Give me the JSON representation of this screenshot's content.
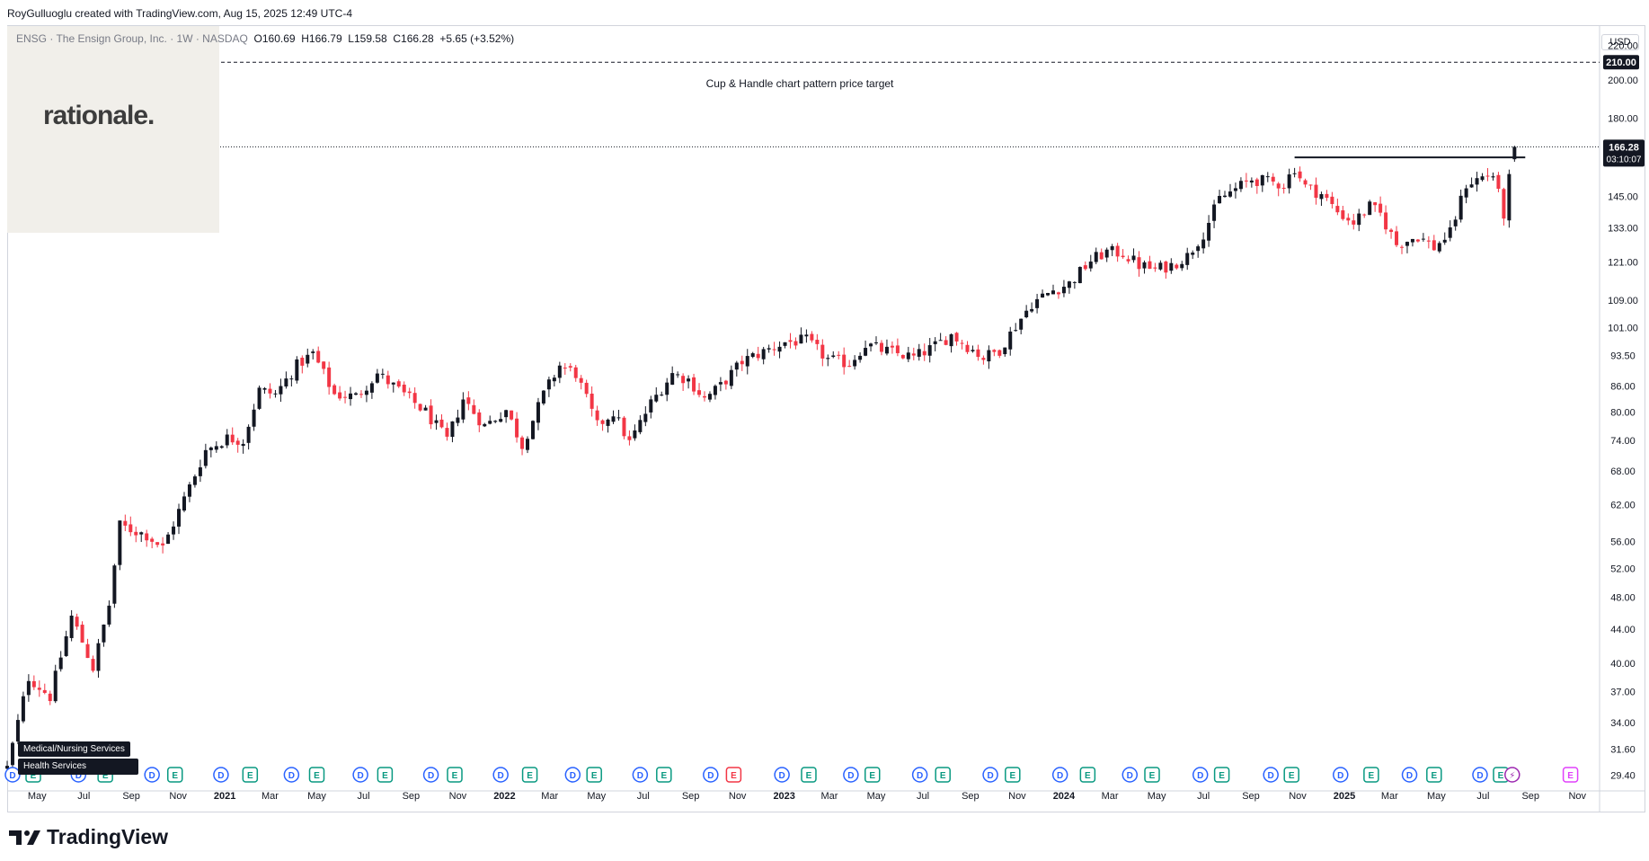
{
  "header": {
    "credit": "RoyGulluoglu created with TradingView.com, Aug 15, 2025 12:49 UTC-4",
    "symbol_desc": "ENSG · The Ensign Group, Inc. · 1W · NASDAQ",
    "open": "O160.69",
    "high": "H166.79",
    "low": "L159.58",
    "close": "C166.28",
    "change": "+5.65 (+3.52%)"
  },
  "branding": {
    "overlay_logo": "rationale.",
    "footer_logo": "TradingView"
  },
  "chart_data": {
    "type": "candlestick",
    "title": "ENSG · The Ensign Group, Inc. · 1W · NASDAQ",
    "currency": "USD",
    "y_scale": "log",
    "ylim": [
      28.5,
      232
    ],
    "y_ticks": [
      29.4,
      31.6,
      34.0,
      37.0,
      40.0,
      44.0,
      48.0,
      52.0,
      56.0,
      62.0,
      68.0,
      74.0,
      80.0,
      86.0,
      93.5,
      101.0,
      109.0,
      121.0,
      133.0,
      145.0,
      166.28,
      180.0,
      200.0,
      210.0,
      220.0
    ],
    "y_tick_labels": [
      "29.40",
      "31.60",
      "34.00",
      "37.00",
      "40.00",
      "44.00",
      "48.00",
      "52.00",
      "56.00",
      "62.00",
      "68.00",
      "74.00",
      "80.00",
      "86.00",
      "93.50",
      "101.00",
      "109.00",
      "121.00",
      "133.00",
      "145.00",
      "166.28",
      "180.00",
      "200.00",
      "210.00",
      "220.00"
    ],
    "x_tick_labels": [
      "May",
      "Jul",
      "Sep",
      "Nov",
      "2021",
      "Mar",
      "May",
      "Jul",
      "Sep",
      "Nov",
      "2022",
      "Mar",
      "May",
      "Jul",
      "Sep",
      "Nov",
      "2023",
      "Mar",
      "May",
      "Jul",
      "Sep",
      "Nov",
      "2024",
      "Mar",
      "May",
      "Jul",
      "Sep",
      "Nov",
      "2025",
      "Mar",
      "May",
      "Jul",
      "Sep",
      "Nov"
    ],
    "x_tick_dates": [
      "2020-05-01",
      "2020-07-01",
      "2020-09-01",
      "2020-11-01",
      "2021-01-01",
      "2021-03-01",
      "2021-05-01",
      "2021-07-01",
      "2021-09-01",
      "2021-11-01",
      "2022-01-01",
      "2022-03-01",
      "2022-05-01",
      "2022-07-01",
      "2022-09-01",
      "2022-11-01",
      "2023-01-01",
      "2023-03-01",
      "2023-05-01",
      "2023-07-01",
      "2023-09-01",
      "2023-11-01",
      "2024-01-01",
      "2024-03-01",
      "2024-05-01",
      "2024-07-01",
      "2024-09-01",
      "2024-11-01",
      "2025-01-01",
      "2025-03-01",
      "2025-05-01",
      "2025-07-01",
      "2025-09-01",
      "2025-11-01"
    ],
    "xlim": [
      "2020-03-23",
      "2025-11-30"
    ],
    "last_price": 166.28,
    "last_price_label": "166.28",
    "countdown": "03:10:07",
    "target_price": 210.0,
    "target_label": "210.00",
    "target_annotation": "Cup & Handle chart pattern price target",
    "neckline": {
      "start": "2024-10-28",
      "end": "2025-08-25",
      "price": 161.5
    },
    "colors": {
      "up": "#131722",
      "down": "#f23645",
      "line": "#131722",
      "label_bg": "#131722",
      "grid_text": "#131722"
    },
    "anchors": [
      [
        "2020-03-23",
        30.0
      ],
      [
        "2020-04-20",
        38.5
      ],
      [
        "2020-05-18",
        36.5
      ],
      [
        "2020-06-15",
        45.5
      ],
      [
        "2020-06-29",
        42.5
      ],
      [
        "2020-07-13",
        39.5
      ],
      [
        "2020-08-03",
        47.0
      ],
      [
        "2020-08-17",
        58.5
      ],
      [
        "2020-09-21",
        57.0
      ],
      [
        "2020-10-12",
        55.0
      ],
      [
        "2020-11-09",
        63.0
      ],
      [
        "2020-12-07",
        72.0
      ],
      [
        "2021-01-04",
        74.5
      ],
      [
        "2021-01-25",
        74.0
      ],
      [
        "2021-02-15",
        85.0
      ],
      [
        "2021-03-08",
        84.0
      ],
      [
        "2021-04-05",
        91.0
      ],
      [
        "2021-04-26",
        94.0
      ],
      [
        "2021-05-24",
        84.0
      ],
      [
        "2021-06-21",
        83.5
      ],
      [
        "2021-07-19",
        89.0
      ],
      [
        "2021-08-23",
        84.0
      ],
      [
        "2021-09-20",
        80.0
      ],
      [
        "2021-10-18",
        74.0
      ],
      [
        "2021-11-08",
        83.0
      ],
      [
        "2021-12-06",
        77.0
      ],
      [
        "2022-01-03",
        80.5
      ],
      [
        "2022-01-24",
        73.0
      ],
      [
        "2022-02-21",
        84.0
      ],
      [
        "2022-03-14",
        91.0
      ],
      [
        "2022-04-04",
        89.0
      ],
      [
        "2022-05-02",
        77.0
      ],
      [
        "2022-05-23",
        80.0
      ],
      [
        "2022-06-13",
        73.5
      ],
      [
        "2022-07-11",
        82.0
      ],
      [
        "2022-08-08",
        89.0
      ],
      [
        "2022-08-29",
        87.5
      ],
      [
        "2022-09-19",
        83.0
      ],
      [
        "2022-10-10",
        86.0
      ],
      [
        "2022-11-07",
        92.0
      ],
      [
        "2022-12-05",
        94.5
      ],
      [
        "2023-01-02",
        97.0
      ],
      [
        "2023-01-30",
        97.5
      ],
      [
        "2023-02-27",
        92.5
      ],
      [
        "2023-03-27",
        91.5
      ],
      [
        "2023-04-17",
        96.5
      ],
      [
        "2023-05-08",
        95.0
      ],
      [
        "2023-05-29",
        94.0
      ],
      [
        "2023-06-19",
        93.0
      ],
      [
        "2023-07-17",
        96.0
      ],
      [
        "2023-08-07",
        99.0
      ],
      [
        "2023-08-28",
        96.0
      ],
      [
        "2023-09-18",
        93.0
      ],
      [
        "2023-10-09",
        95.0
      ],
      [
        "2023-10-30",
        101.5
      ],
      [
        "2023-11-20",
        108.0
      ],
      [
        "2023-12-18",
        112.0
      ],
      [
        "2024-01-08",
        114.0
      ],
      [
        "2024-02-05",
        121.5
      ],
      [
        "2024-02-26",
        124.5
      ],
      [
        "2024-03-18",
        124.0
      ],
      [
        "2024-04-08",
        120.0
      ],
      [
        "2024-04-29",
        118.5
      ],
      [
        "2024-05-20",
        120.0
      ],
      [
        "2024-06-10",
        123.0
      ],
      [
        "2024-07-01",
        131.0
      ],
      [
        "2024-07-22",
        144.0
      ],
      [
        "2024-08-12",
        148.0
      ],
      [
        "2024-09-02",
        152.0
      ],
      [
        "2024-09-23",
        151.0
      ],
      [
        "2024-10-14",
        150.0
      ],
      [
        "2024-10-28",
        157.0
      ],
      [
        "2024-11-11",
        149.0
      ],
      [
        "2024-12-02",
        146.0
      ],
      [
        "2024-12-23",
        139.0
      ],
      [
        "2025-01-13",
        135.0
      ],
      [
        "2025-02-03",
        141.0
      ],
      [
        "2025-02-17",
        138.0
      ],
      [
        "2025-03-10",
        127.0
      ],
      [
        "2025-04-07",
        130.0
      ],
      [
        "2025-04-28",
        126.0
      ],
      [
        "2025-05-19",
        131.0
      ],
      [
        "2025-06-09",
        150.0
      ],
      [
        "2025-06-30",
        153.0
      ],
      [
        "2025-07-14",
        154.0
      ],
      [
        "2025-07-28",
        138.0
      ],
      [
        "2025-08-04",
        152.0
      ],
      [
        "2025-08-11",
        166.28
      ]
    ]
  },
  "events": {
    "dividend_label": "D",
    "earnings_label": "E",
    "split_label": "⚡",
    "dividends": [
      "2020-03-30",
      "2020-06-24",
      "2020-09-28",
      "2020-12-27",
      "2021-03-29",
      "2021-06-27",
      "2021-09-27",
      "2021-12-27",
      "2022-03-31",
      "2022-06-27",
      "2022-09-27",
      "2022-12-29",
      "2023-03-29",
      "2023-06-27",
      "2023-09-27",
      "2023-12-27",
      "2024-03-27",
      "2024-06-27",
      "2024-09-27",
      "2024-12-27",
      "2025-03-27",
      "2025-06-27"
    ],
    "earnings": [
      "2020-04-26",
      "2020-07-29",
      "2020-10-28",
      "2021-02-03",
      "2021-05-01",
      "2021-07-29",
      "2021-10-28",
      "2022-02-03",
      "2022-04-28",
      "2022-07-28",
      "2022-10-27",
      "2023-02-02",
      "2023-04-26",
      "2023-07-27",
      "2023-10-26",
      "2024-02-01",
      "2024-04-25",
      "2024-07-25",
      "2024-10-24",
      "2025-02-05",
      "2025-04-28",
      "2025-07-24",
      "2025-10-23"
    ]
  },
  "sector_tags": [
    "Medical/Nursing Services",
    "Health Services"
  ]
}
